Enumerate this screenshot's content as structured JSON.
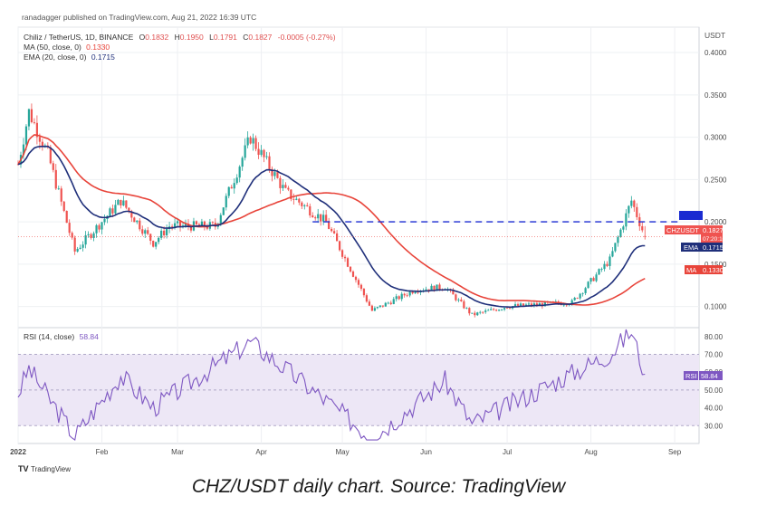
{
  "header": {
    "published": "ranadagger published on TradingView.com, Aug 21, 2022 16:39 UTC",
    "symbol_line": "Chiliz / TetherUS, 1D, BINANCE",
    "ohlc": {
      "o_label": "O",
      "o": "0.1832",
      "h_label": "H",
      "h": "0.1950",
      "l_label": "L",
      "l": "0.1791",
      "c_label": "C",
      "c": "0.1827",
      "chg": "-0.0005 (-0.27%)"
    },
    "ma_label": "MA (50, close, 0)",
    "ma_value": "0.1330",
    "ema_label": "EMA (20, close, 0)",
    "ema_value": "0.1715",
    "rsi_label": "RSI (14, close)",
    "rsi_value": "58.84"
  },
  "colors": {
    "up": "#26a69a",
    "down": "#ef5350",
    "ema": "#1f2f7a",
    "ma": "#e8443a",
    "rsi": "#7e57c2",
    "rsi_band": "#ede7f6",
    "level": "#1a2bd1",
    "grid": "#eef0f3",
    "axis_text": "#4a4a4a"
  },
  "chart_data": [
    {
      "type": "candlestick",
      "title": "CHZ/USDT daily chart",
      "price_axis_label": "USDT",
      "price_ticks": [
        "0.1000",
        "0.1500",
        "0.2000",
        "0.2500",
        "0.3000",
        "0.3500",
        "0.4000"
      ],
      "ylim": [
        0.075,
        0.43
      ],
      "x_ticks": [
        "2022",
        "Feb",
        "Mar",
        "Apr",
        "May",
        "Jun",
        "Jul",
        "Aug",
        "Sep"
      ],
      "horizontal_level": 0.2,
      "level_label": "0.2000",
      "price_tags": [
        {
          "name": "CHZUSDT",
          "value": "0.1827",
          "sub": "07:20:10"
        },
        {
          "name": "EMA",
          "value": "0.1715"
        },
        {
          "name": "MA",
          "value": "0.1330"
        }
      ],
      "key_closes": [
        {
          "date": "2022-01-01",
          "close": 0.268
        },
        {
          "date": "2022-01-05",
          "close": 0.33
        },
        {
          "date": "2022-01-12",
          "close": 0.28
        },
        {
          "date": "2022-01-22",
          "close": 0.165
        },
        {
          "date": "2022-02-08",
          "close": 0.225
        },
        {
          "date": "2022-02-20",
          "close": 0.175
        },
        {
          "date": "2022-02-26",
          "close": 0.195
        },
        {
          "date": "2022-03-15",
          "close": 0.195
        },
        {
          "date": "2022-03-28",
          "close": 0.3
        },
        {
          "date": "2022-04-10",
          "close": 0.235
        },
        {
          "date": "2022-04-25",
          "close": 0.2
        },
        {
          "date": "2022-05-12",
          "close": 0.095
        },
        {
          "date": "2022-05-28",
          "close": 0.12
        },
        {
          "date": "2022-06-08",
          "close": 0.123
        },
        {
          "date": "2022-06-18",
          "close": 0.09
        },
        {
          "date": "2022-07-01",
          "close": 0.1
        },
        {
          "date": "2022-07-25",
          "close": 0.105
        },
        {
          "date": "2022-08-08",
          "close": 0.155
        },
        {
          "date": "2022-08-16",
          "close": 0.225
        },
        {
          "date": "2022-08-21",
          "close": 0.1827
        }
      ],
      "ema20_last": 0.1715,
      "ma50_last": 0.133
    },
    {
      "type": "line",
      "title": "RSI (14, close)",
      "series": [
        {
          "name": "RSI",
          "last": 58.84
        }
      ],
      "ylim": [
        20,
        85
      ],
      "y_ticks": [
        "30.00",
        "40.00",
        "50.00",
        "60.00",
        "70.00",
        "80.00"
      ],
      "band": [
        30,
        70
      ],
      "key_points": [
        {
          "date": "2022-01-01",
          "value": 48
        },
        {
          "date": "2022-01-05",
          "value": 62
        },
        {
          "date": "2022-01-22",
          "value": 24
        },
        {
          "date": "2022-02-08",
          "value": 58
        },
        {
          "date": "2022-02-20",
          "value": 40
        },
        {
          "date": "2022-03-28",
          "value": 77
        },
        {
          "date": "2022-04-25",
          "value": 44
        },
        {
          "date": "2022-05-12",
          "value": 23
        },
        {
          "date": "2022-06-08",
          "value": 55
        },
        {
          "date": "2022-06-18",
          "value": 31
        },
        {
          "date": "2022-08-08",
          "value": 70
        },
        {
          "date": "2022-08-16",
          "value": 83
        },
        {
          "date": "2022-08-21",
          "value": 58.84
        }
      ]
    }
  ],
  "footer": {
    "brand": "TradingView",
    "caption": "CHZ/USDT daily chart. Source: TradingView"
  }
}
